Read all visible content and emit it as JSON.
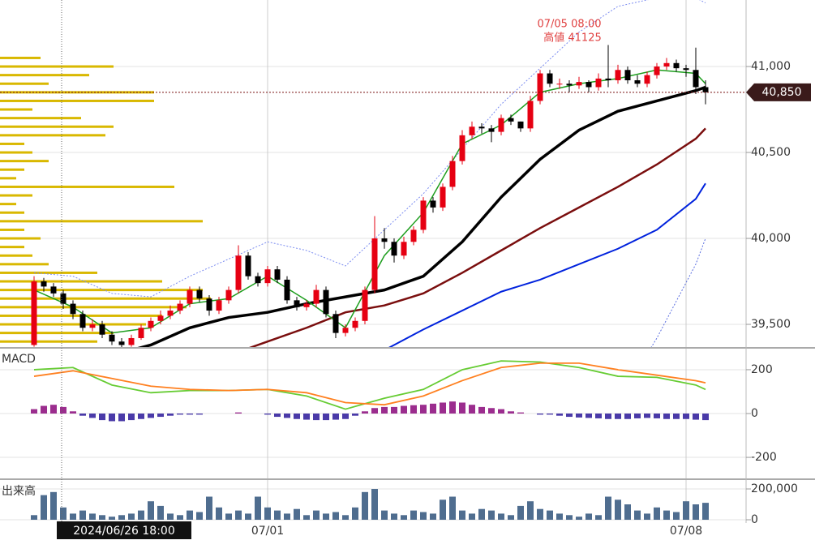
{
  "chart_data": [
    {
      "type": "candlestick",
      "categories": [
        null,
        null,
        null,
        null,
        null,
        null,
        null,
        null,
        null,
        null,
        null,
        null,
        null,
        null,
        null,
        null,
        null,
        null,
        null,
        null,
        null,
        null,
        null,
        null,
        "07/01",
        null,
        null,
        null,
        null,
        null,
        null,
        null,
        null,
        null,
        null,
        null,
        null,
        null,
        null,
        null,
        null,
        null,
        null,
        null,
        null,
        null,
        null,
        null,
        null,
        null,
        null,
        null,
        null,
        null,
        null,
        null,
        null,
        null,
        null,
        null,
        null,
        null,
        null,
        null,
        null,
        null,
        null,
        "07/08",
        null,
        null
      ],
      "open": [
        39380,
        39750,
        39720,
        39680,
        39620,
        39560,
        39480,
        39500,
        39440,
        39400,
        39380,
        39420,
        39480,
        39520,
        39550,
        39580,
        39620,
        39700,
        39650,
        39580,
        39640,
        39700,
        39900,
        39780,
        39740,
        39820,
        39760,
        39640,
        39600,
        39620,
        39700,
        39560,
        39450,
        39480,
        39520,
        39700,
        40000,
        39980,
        39900,
        39980,
        40050,
        40220,
        40180,
        40300,
        40450,
        40600,
        40650,
        40640,
        40620,
        40700,
        40680,
        40640,
        40800,
        40960,
        40900,
        40900,
        40890,
        40910,
        40880,
        40930,
        40920,
        40980,
        40920,
        40900,
        40950,
        41000,
        41020,
        40990,
        40980,
        40880
      ],
      "high": [
        39780,
        39770,
        39740,
        39700,
        39640,
        39580,
        39530,
        39520,
        39460,
        39420,
        39440,
        39500,
        39540,
        39580,
        39610,
        39640,
        39720,
        39720,
        39670,
        39660,
        39720,
        39960,
        39920,
        39800,
        39840,
        39840,
        39780,
        39660,
        39640,
        39730,
        39720,
        39580,
        39500,
        39540,
        39720,
        40130,
        40060,
        40000,
        40010,
        40070,
        40240,
        40240,
        40320,
        40480,
        40630,
        40680,
        40670,
        40660,
        40720,
        40720,
        40680,
        40830,
        40980,
        40980,
        40930,
        40920,
        40940,
        40920,
        40960,
        41125,
        41010,
        41000,
        40950,
        40970,
        41020,
        41050,
        41040,
        41010,
        41110,
        40920
      ],
      "low": [
        39370,
        39690,
        39660,
        39590,
        39530,
        39460,
        39460,
        39420,
        39380,
        39360,
        39370,
        39410,
        39460,
        39500,
        39530,
        39560,
        39600,
        39630,
        39550,
        39560,
        39620,
        39680,
        39760,
        39720,
        39720,
        39740,
        39620,
        39580,
        39580,
        39600,
        39540,
        39420,
        39430,
        39460,
        39500,
        39680,
        39940,
        39860,
        39880,
        39960,
        40030,
        40150,
        40160,
        40280,
        40430,
        40580,
        40610,
        40560,
        40600,
        40660,
        40620,
        40620,
        40780,
        40880,
        40870,
        40850,
        40870,
        40850,
        40860,
        40880,
        40900,
        40900,
        40880,
        40880,
        40930,
        40980,
        40970,
        40940,
        40840,
        40780
      ],
      "close": [
        39750,
        39720,
        39680,
        39620,
        39560,
        39480,
        39500,
        39440,
        39400,
        39380,
        39420,
        39480,
        39520,
        39550,
        39580,
        39620,
        39700,
        39650,
        39580,
        39640,
        39700,
        39900,
        39780,
        39740,
        39820,
        39760,
        39640,
        39600,
        39620,
        39700,
        39560,
        39450,
        39480,
        39520,
        39700,
        40000,
        39980,
        39900,
        39980,
        40050,
        40220,
        40180,
        40300,
        40450,
        40600,
        40650,
        40640,
        40620,
        40700,
        40680,
        40640,
        40800,
        40960,
        40900,
        40900,
        40890,
        40910,
        40880,
        40930,
        40920,
        40980,
        40920,
        40900,
        40950,
        41000,
        41020,
        40990,
        40980,
        40880,
        40850
      ],
      "up_color": "#e60012",
      "down_color": "#000000",
      "ylim": [
        39368,
        41387
      ],
      "yticks": [
        {
          "value": 39500,
          "label": "39,500"
        },
        {
          "value": 40000,
          "label": "40,000"
        },
        {
          "value": 40500,
          "label": "40,500"
        },
        {
          "value": 41000,
          "label": "41,000"
        }
      ],
      "grid": true,
      "overlays": [
        {
          "color": "#7b8cf0",
          "width": 1,
          "dash": true,
          "x": [
            0,
            4,
            8,
            12,
            16,
            20,
            24,
            28,
            32,
            36,
            40,
            44,
            48,
            52,
            56,
            60,
            64,
            68,
            69
          ],
          "values": [
            39800,
            39780,
            39680,
            39660,
            39780,
            39880,
            39980,
            39930,
            39840,
            40050,
            40260,
            40520,
            40780,
            40990,
            41200,
            41350,
            41400,
            41400,
            41370
          ]
        },
        {
          "color": "#5a6ee0",
          "width": 1,
          "dash": true,
          "x": [
            0,
            4,
            8,
            12,
            16,
            20,
            24,
            28,
            32,
            36,
            40,
            44,
            48,
            52,
            56,
            60,
            64,
            68,
            69
          ],
          "values": [
            39150,
            39100,
            39050,
            39200,
            39300,
            39250,
            39200,
            39150,
            39100,
            38950,
            38800,
            38700,
            38700,
            38750,
            38850,
            39050,
            39420,
            39850,
            40000
          ]
        },
        {
          "color": "#0022dd",
          "width": 2,
          "dash": false,
          "x": [
            0,
            4,
            8,
            12,
            16,
            20,
            24,
            28,
            32,
            36,
            40,
            44,
            48,
            52,
            56,
            60,
            64,
            68,
            69
          ],
          "values": [
            38600,
            38680,
            38750,
            38830,
            38900,
            38980,
            39060,
            39150,
            39250,
            39350,
            39470,
            39580,
            39690,
            39760,
            39850,
            39940,
            40050,
            40230,
            40320
          ]
        },
        {
          "color": "#7a0e0e",
          "width": 2.5,
          "dash": false,
          "x": [
            0,
            4,
            8,
            12,
            16,
            20,
            24,
            28,
            32,
            36,
            40,
            44,
            48,
            52,
            56,
            60,
            64,
            68,
            69
          ],
          "values": [
            38950,
            39020,
            39100,
            39180,
            39250,
            39320,
            39400,
            39480,
            39570,
            39610,
            39680,
            39800,
            39930,
            40060,
            40180,
            40300,
            40430,
            40580,
            40640
          ]
        },
        {
          "color": "#000000",
          "width": 3.5,
          "dash": false,
          "x": [
            0,
            4,
            8,
            12,
            16,
            20,
            24,
            28,
            32,
            36,
            40,
            44,
            48,
            52,
            56,
            60,
            64,
            68,
            69
          ],
          "values": [
            39200,
            39250,
            39320,
            39380,
            39480,
            39540,
            39570,
            39620,
            39660,
            39700,
            39780,
            39980,
            40240,
            40460,
            40630,
            40740,
            40800,
            40860,
            40880
          ]
        },
        {
          "color": "#1e9e1e",
          "width": 1.5,
          "dash": false,
          "x": [
            0,
            4,
            8,
            12,
            16,
            20,
            24,
            28,
            32,
            36,
            40,
            44,
            48,
            52,
            56,
            60,
            64,
            68,
            69
          ],
          "values": [
            39700,
            39600,
            39450,
            39480,
            39620,
            39650,
            39780,
            39640,
            39480,
            39900,
            40150,
            40550,
            40660,
            40850,
            40900,
            40930,
            40980,
            40960,
            40900
          ]
        }
      ],
      "volume_profile": {
        "color": "#d9b800",
        "xlim": [
          0,
          920
        ],
        "prices": [
          39400,
          39450,
          39500,
          39550,
          39600,
          39650,
          39700,
          39750,
          39800,
          39850,
          39900,
          39950,
          40000,
          40050,
          40100,
          40150,
          40200,
          40250,
          40300,
          40350,
          40400,
          40450,
          40500,
          40550,
          40600,
          40650,
          40700,
          40750,
          40800,
          40850,
          40900,
          40950,
          41000,
          41050
        ],
        "values": [
          120,
          140,
          180,
          200,
          230,
          260,
          250,
          200,
          120,
          60,
          40,
          30,
          50,
          30,
          250,
          30,
          20,
          40,
          215,
          20,
          30,
          60,
          40,
          30,
          130,
          140,
          100,
          40,
          190,
          190,
          60,
          110,
          140,
          50
        ]
      },
      "last_price": {
        "value": 40850,
        "label": "40,850"
      },
      "annotation": {
        "time": "07/05 08:00",
        "label": "高値 41125"
      },
      "crosshair": {
        "label": "2024/06/26 18:00"
      }
    },
    {
      "type": "line",
      "title": "MACD",
      "x": [
        0,
        4,
        8,
        12,
        16,
        20,
        24,
        28,
        32,
        36,
        40,
        44,
        48,
        52,
        56,
        60,
        64,
        68,
        69
      ],
      "series": [
        {
          "color": "#66cc33",
          "values": [
            200,
            210,
            130,
            95,
            105,
            105,
            110,
            80,
            20,
            70,
            110,
            200,
            240,
            235,
            210,
            170,
            165,
            130,
            110
          ]
        },
        {
          "color": "#ff8020",
          "values": [
            170,
            195,
            160,
            125,
            110,
            105,
            110,
            95,
            50,
            40,
            80,
            150,
            210,
            230,
            230,
            200,
            175,
            150,
            140
          ]
        }
      ],
      "histogram": {
        "pos_color": "#9b2d8e",
        "neg_color": "#4a3aa8",
        "values": [
          20,
          35,
          40,
          30,
          10,
          -10,
          -20,
          -30,
          -35,
          -35,
          -30,
          -25,
          -20,
          -15,
          -10,
          -5,
          -5,
          -5,
          0,
          0,
          0,
          5,
          0,
          0,
          -5,
          -15,
          -20,
          -25,
          -28,
          -30,
          -30,
          -28,
          -25,
          -10,
          10,
          25,
          30,
          30,
          35,
          38,
          40,
          45,
          50,
          55,
          50,
          40,
          30,
          25,
          20,
          10,
          5,
          0,
          -5,
          -5,
          -10,
          -15,
          -18,
          -20,
          -22,
          -25,
          -25,
          -25,
          -22,
          -20,
          -22,
          -25,
          -25,
          -25,
          -28,
          -30
        ]
      },
      "ylim": [
        -296,
        296
      ],
      "yticks": [
        -200,
        0,
        200
      ],
      "grid": true
    },
    {
      "type": "bar",
      "title": "出来高",
      "color": "#4f6d8f",
      "values": [
        30000,
        160000,
        180000,
        80000,
        40000,
        60000,
        40000,
        30000,
        20000,
        30000,
        40000,
        60000,
        120000,
        90000,
        40000,
        30000,
        60000,
        50000,
        150000,
        80000,
        40000,
        60000,
        40000,
        150000,
        80000,
        60000,
        40000,
        70000,
        30000,
        60000,
        40000,
        50000,
        30000,
        80000,
        180000,
        200000,
        60000,
        40000,
        30000,
        60000,
        50000,
        40000,
        130000,
        150000,
        60000,
        40000,
        70000,
        60000,
        40000,
        30000,
        90000,
        120000,
        70000,
        60000,
        40000,
        30000,
        20000,
        40000,
        30000,
        150000,
        130000,
        100000,
        60000,
        40000,
        80000,
        60000,
        50000,
        120000,
        100000,
        110000
      ],
      "ylim": [
        0,
        258000
      ],
      "yticks": [
        0,
        {
          "value": 200000,
          "label": "200,000"
        }
      ],
      "grid": true
    }
  ]
}
